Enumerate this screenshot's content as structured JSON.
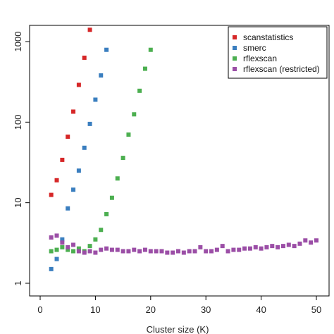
{
  "chart_data": {
    "type": "scatter",
    "title": "",
    "xlabel": "Cluster size (K)",
    "ylabel": "",
    "xlim": [
      0,
      50
    ],
    "ylim": [
      1,
      1500
    ],
    "y_scale": "log",
    "x_ticks": [
      0,
      10,
      20,
      30,
      40,
      50
    ],
    "y_ticks": [
      1,
      10,
      100,
      1000
    ],
    "y_tick_labels": [
      "1",
      "10",
      "100",
      "1000"
    ],
    "grid": false,
    "legend_position": "top-right",
    "series": [
      {
        "name": "scanstatistics",
        "color": "#d62728",
        "x": [
          2,
          3,
          4,
          5,
          6,
          7,
          8,
          9
        ],
        "y": [
          12.5,
          19,
          34,
          66,
          135,
          290,
          630,
          1400
        ]
      },
      {
        "name": "smerc",
        "color": "#3a7ebf",
        "x": [
          2,
          3,
          4,
          5,
          6,
          7,
          8,
          9,
          10,
          11,
          12
        ],
        "y": [
          1.5,
          2.0,
          3.5,
          8.5,
          14.5,
          25,
          48,
          95,
          190,
          380,
          790
        ]
      },
      {
        "name": "rflexscan",
        "color": "#4caf50",
        "x": [
          2,
          3,
          4,
          5,
          6,
          7,
          8,
          9,
          10,
          11,
          12,
          13,
          14,
          15,
          16,
          17,
          18,
          19,
          20
        ],
        "y": [
          2.5,
          2.6,
          2.8,
          2.6,
          2.5,
          2.7,
          2.5,
          2.9,
          3.5,
          4.6,
          7.2,
          11.5,
          20,
          36,
          70,
          125,
          245,
          460,
          790
        ]
      },
      {
        "name": "rflexscan (restricted)",
        "color": "#9b4ea6",
        "x": [
          2,
          3,
          4,
          5,
          6,
          7,
          8,
          9,
          10,
          11,
          12,
          13,
          14,
          15,
          16,
          17,
          18,
          19,
          20,
          21,
          22,
          23,
          24,
          25,
          26,
          27,
          28,
          29,
          30,
          31,
          32,
          33,
          34,
          35,
          36,
          37,
          38,
          39,
          40,
          41,
          42,
          43,
          44,
          45,
          46,
          47,
          48,
          49,
          50
        ],
        "y": [
          3.7,
          3.9,
          3.2,
          2.8,
          3.0,
          2.5,
          2.4,
          2.5,
          2.4,
          2.6,
          2.7,
          2.6,
          2.6,
          2.5,
          2.5,
          2.6,
          2.5,
          2.6,
          2.5,
          2.5,
          2.5,
          2.4,
          2.4,
          2.5,
          2.4,
          2.5,
          2.5,
          2.8,
          2.5,
          2.5,
          2.6,
          2.9,
          2.5,
          2.6,
          2.6,
          2.7,
          2.7,
          2.8,
          2.7,
          2.8,
          2.9,
          2.8,
          2.9,
          3.0,
          2.9,
          3.1,
          3.4,
          3.2,
          3.4
        ]
      }
    ]
  }
}
